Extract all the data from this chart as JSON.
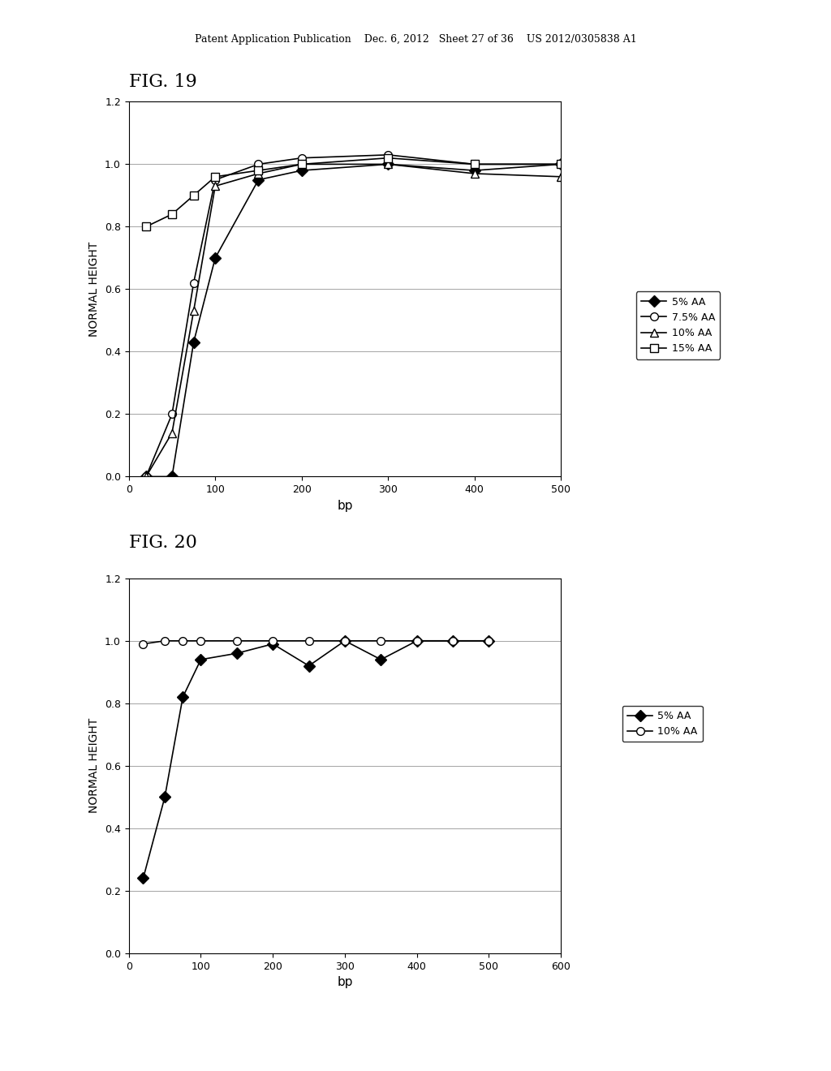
{
  "fig19": {
    "title": "FIG. 19",
    "series": {
      "5% AA": {
        "x": [
          20,
          50,
          75,
          100,
          150,
          200,
          300,
          400,
          500
        ],
        "y": [
          0.0,
          0.0,
          0.43,
          0.7,
          0.95,
          0.98,
          1.0,
          0.98,
          1.0
        ],
        "marker": "D",
        "markerfacecolor": "black",
        "color": "black",
        "label": "5% AA"
      },
      "7.5% AA": {
        "x": [
          20,
          50,
          75,
          100,
          150,
          200,
          300,
          400,
          500
        ],
        "y": [
          0.0,
          0.2,
          0.62,
          0.95,
          1.0,
          1.02,
          1.03,
          1.0,
          1.0
        ],
        "marker": "o",
        "markerfacecolor": "white",
        "color": "black",
        "label": "7.5% AA"
      },
      "10% AA": {
        "x": [
          20,
          50,
          75,
          100,
          150,
          200,
          300,
          400,
          500
        ],
        "y": [
          0.0,
          0.14,
          0.53,
          0.93,
          0.97,
          1.0,
          1.0,
          0.97,
          0.96
        ],
        "marker": "^",
        "markerfacecolor": "white",
        "color": "black",
        "label": "10% AA"
      },
      "15% AA": {
        "x": [
          20,
          50,
          75,
          100,
          150,
          200,
          300,
          400,
          500
        ],
        "y": [
          0.8,
          0.84,
          0.9,
          0.96,
          0.98,
          1.0,
          1.02,
          1.0,
          1.0
        ],
        "marker": "s",
        "markerfacecolor": "white",
        "color": "black",
        "label": "15% AA"
      }
    },
    "xlabel": "bp",
    "ylabel": "NORMAL HEIGHT",
    "xlim": [
      0,
      500
    ],
    "ylim": [
      0,
      1.2
    ],
    "yticks": [
      0,
      0.2,
      0.4,
      0.6,
      0.8,
      1.0,
      1.2
    ],
    "xticks": [
      0,
      100,
      200,
      300,
      400,
      500
    ]
  },
  "fig20": {
    "title": "FIG. 20",
    "series": {
      "5% AA": {
        "x": [
          20,
          50,
          75,
          100,
          150,
          200,
          250,
          300,
          350,
          400,
          450,
          500
        ],
        "y": [
          0.24,
          0.5,
          0.82,
          0.94,
          0.96,
          0.99,
          0.92,
          1.0,
          0.94,
          1.0,
          1.0,
          1.0
        ],
        "marker": "D",
        "markerfacecolor": "black",
        "color": "black",
        "label": "5% AA"
      },
      "10% AA": {
        "x": [
          20,
          50,
          75,
          100,
          150,
          200,
          250,
          300,
          350,
          400,
          450,
          500
        ],
        "y": [
          0.99,
          1.0,
          1.0,
          1.0,
          1.0,
          1.0,
          1.0,
          1.0,
          1.0,
          1.0,
          1.0,
          1.0
        ],
        "marker": "o",
        "markerfacecolor": "white",
        "color": "black",
        "label": "10% AA"
      }
    },
    "xlabel": "bp",
    "ylabel": "NORMAL HEIGHT",
    "xlim": [
      0,
      600
    ],
    "ylim": [
      0,
      1.2
    ],
    "yticks": [
      0,
      0.2,
      0.4,
      0.6,
      0.8,
      1.0,
      1.2
    ],
    "xticks": [
      0,
      100,
      200,
      300,
      400,
      500,
      600
    ]
  },
  "header_text": "Patent Application Publication    Dec. 6, 2012   Sheet 27 of 36    US 2012/0305838 A1",
  "background_color": "#ffffff"
}
